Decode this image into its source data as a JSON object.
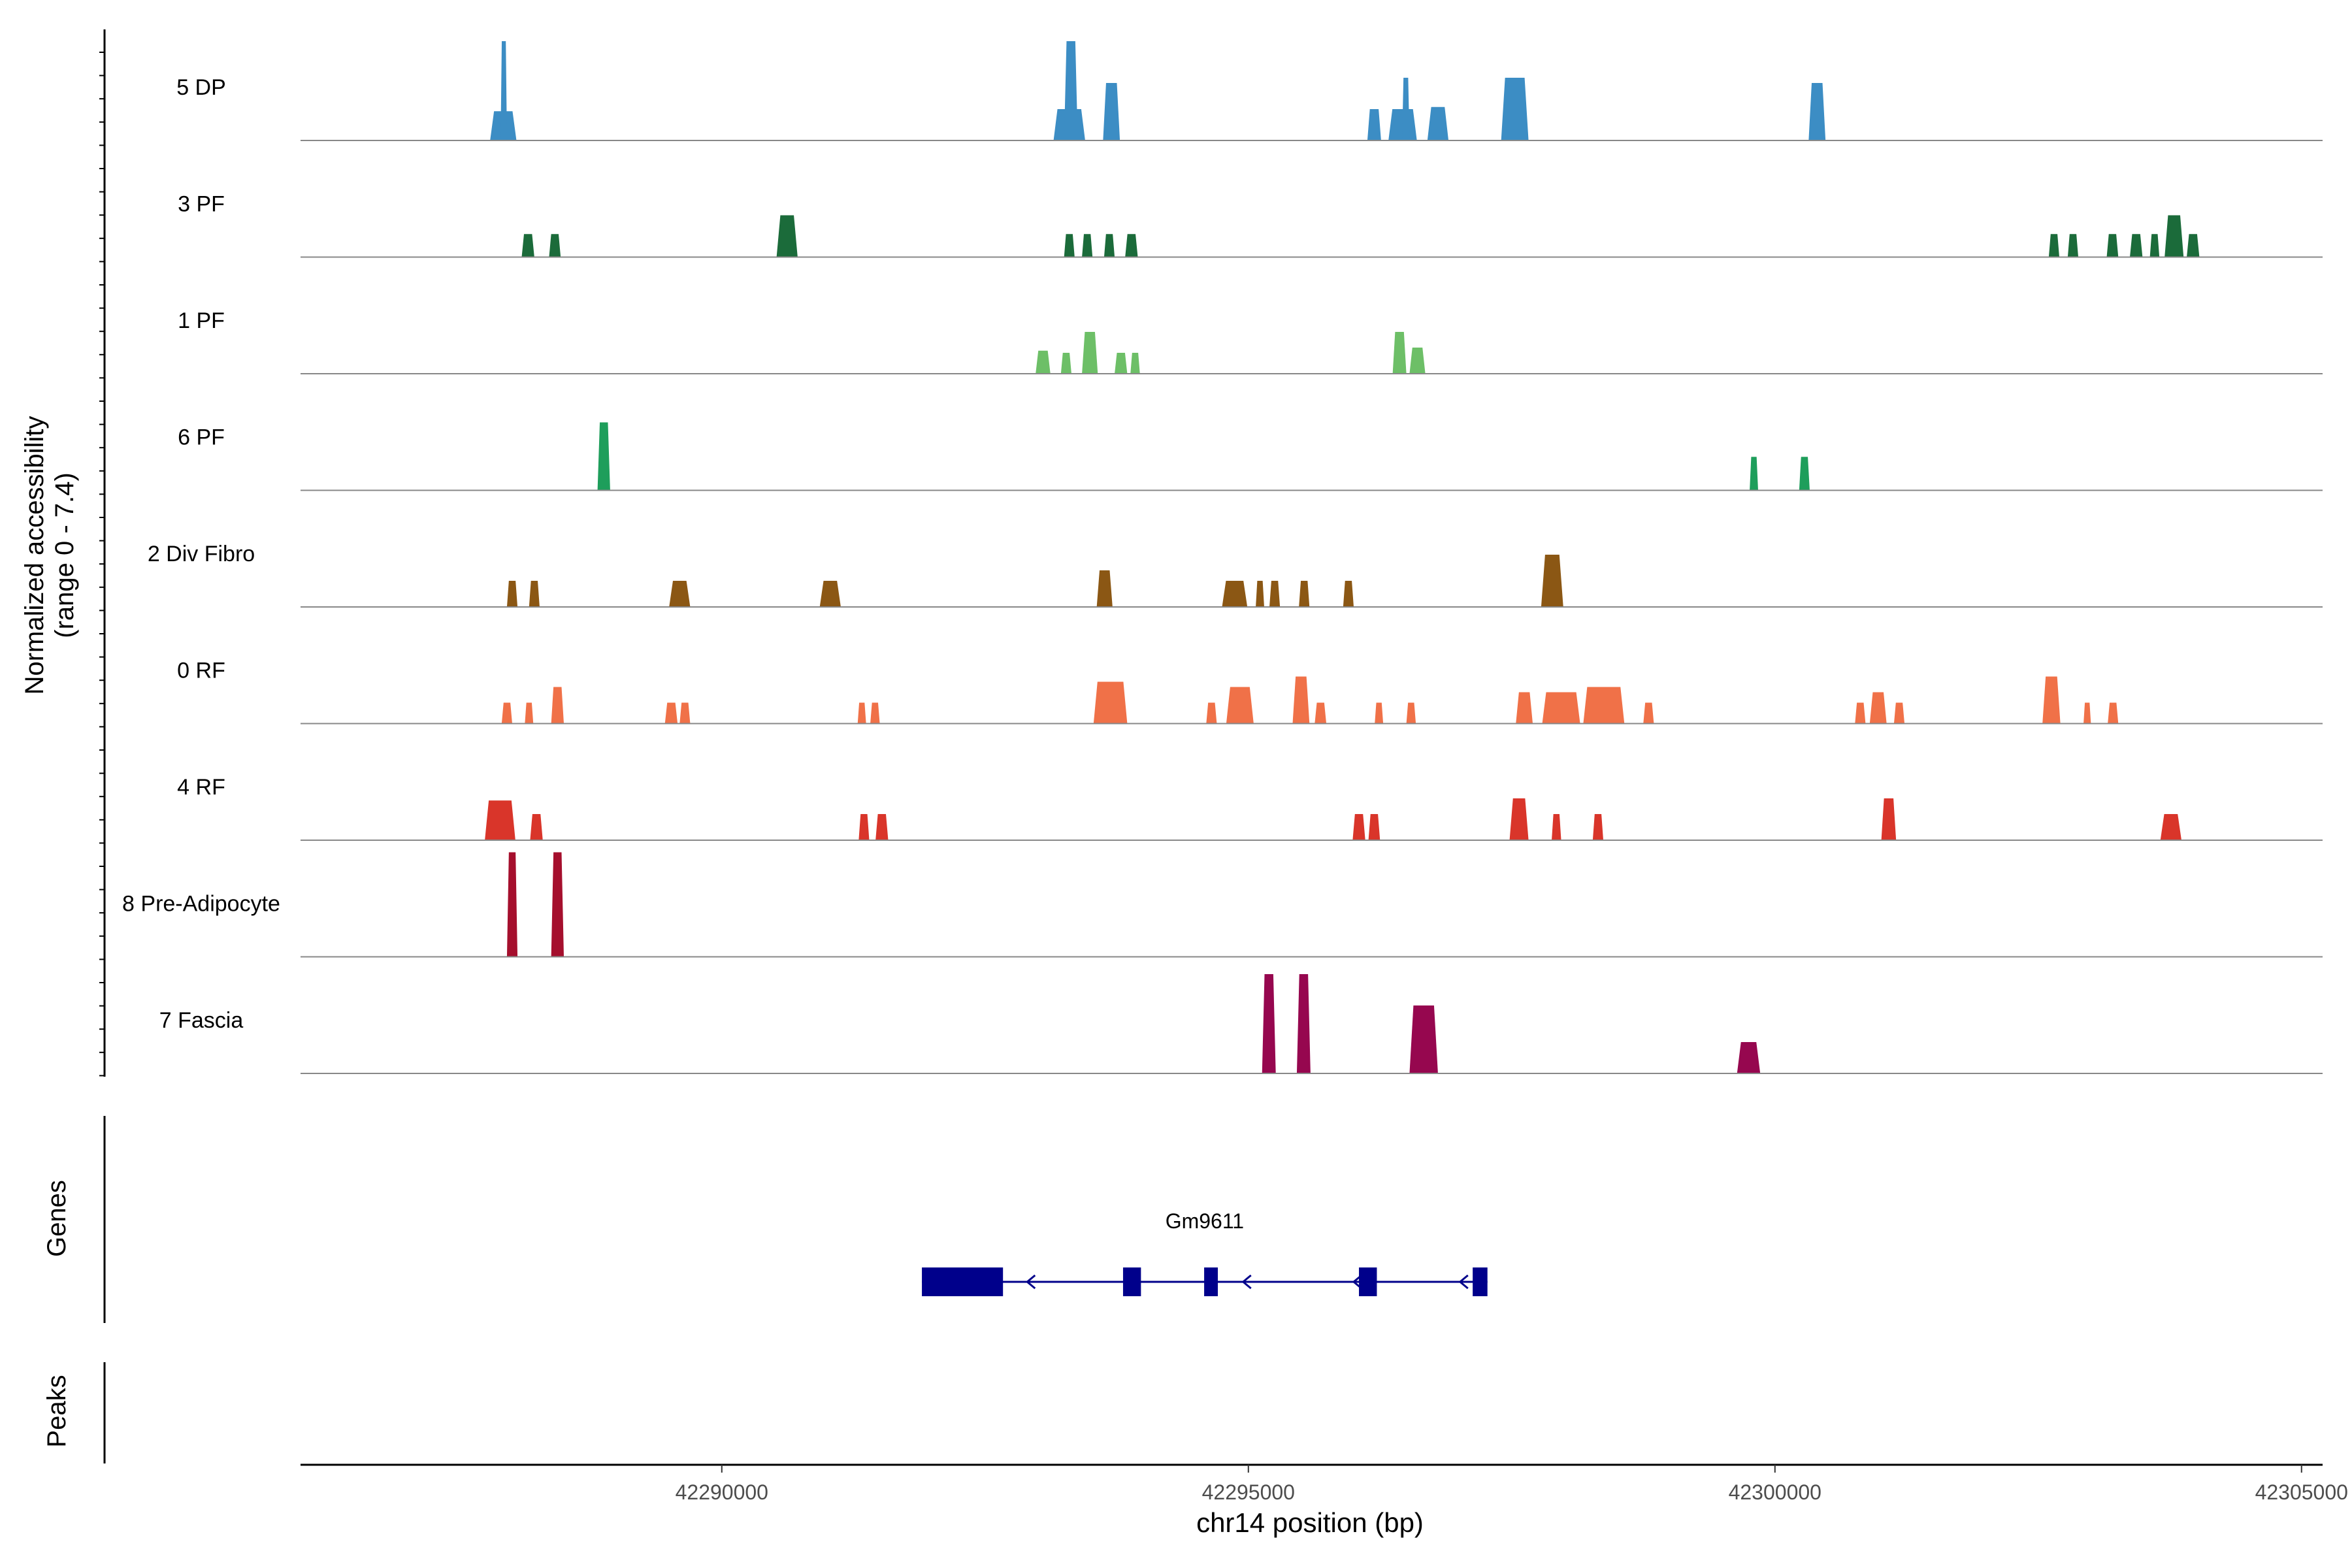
{
  "chart_data": {
    "type": "coverage-track",
    "y_axis_title_line1": "Normalized accessibility",
    "y_axis_title_line2": "(range 0 - 7.4)",
    "y_range": [
      0,
      7.4
    ],
    "x_axis_title": "chr14 position (bp)",
    "x_range": [
      42286000,
      42305200
    ],
    "x_ticks": [
      {
        "value": 42290000,
        "label": "42290000"
      },
      {
        "value": 42295000,
        "label": "42295000"
      },
      {
        "value": 42300000,
        "label": "42300000"
      },
      {
        "value": 42305000,
        "label": "42305000"
      }
    ],
    "tracks": [
      {
        "name": "5 DP",
        "color": "#3C8DC4",
        "peaks": [
          {
            "x": [
              42287800,
              42288050
            ],
            "h": 0.28
          },
          {
            "x": [
              42287900,
              42287960
            ],
            "h": 0.95
          },
          {
            "x": [
              42293150,
              42293450
            ],
            "h": 0.3
          },
          {
            "x": [
              42293250,
              42293380
            ],
            "h": 0.95
          },
          {
            "x": [
              42293620,
              42293780
            ],
            "h": 0.55
          },
          {
            "x": [
              42296130,
              42296260
            ],
            "h": 0.3
          },
          {
            "x": [
              42296330,
              42296600
            ],
            "h": 0.3
          },
          {
            "x": [
              42296460,
              42296530
            ],
            "h": 0.6
          },
          {
            "x": [
              42296700,
              42296900
            ],
            "h": 0.32
          },
          {
            "x": [
              42297400,
              42297660
            ],
            "h": 0.6
          },
          {
            "x": [
              42300320,
              42300480
            ],
            "h": 0.55
          }
        ]
      },
      {
        "name": "3 PF",
        "color": "#1B6B3A",
        "peaks": [
          {
            "x": [
              42288100,
              42288220
            ],
            "h": 0.22
          },
          {
            "x": [
              42288360,
              42288470
            ],
            "h": 0.22
          },
          {
            "x": [
              42290520,
              42290720
            ],
            "h": 0.4
          },
          {
            "x": [
              42293250,
              42293350
            ],
            "h": 0.22
          },
          {
            "x": [
              42293420,
              42293520
            ],
            "h": 0.22
          },
          {
            "x": [
              42293630,
              42293730
            ],
            "h": 0.22
          },
          {
            "x": [
              42293830,
              42293950
            ],
            "h": 0.22
          },
          {
            "x": [
              42302600,
              42302700
            ],
            "h": 0.22
          },
          {
            "x": [
              42302780,
              42302880
            ],
            "h": 0.22
          },
          {
            "x": [
              42303150,
              42303260
            ],
            "h": 0.22
          },
          {
            "x": [
              42303370,
              42303490
            ],
            "h": 0.22
          },
          {
            "x": [
              42303560,
              42303650
            ],
            "h": 0.22
          },
          {
            "x": [
              42303700,
              42303880
            ],
            "h": 0.4
          },
          {
            "x": [
              42303910,
              42304030
            ],
            "h": 0.22
          }
        ]
      },
      {
        "name": "1 PF",
        "color": "#6DBF67",
        "peaks": [
          {
            "x": [
              42292980,
              42293120
            ],
            "h": 0.22
          },
          {
            "x": [
              42293220,
              42293320
            ],
            "h": 0.2
          },
          {
            "x": [
              42293420,
              42293570
            ],
            "h": 0.4
          },
          {
            "x": [
              42293730,
              42293850
            ],
            "h": 0.2
          },
          {
            "x": [
              42293880,
              42293970
            ],
            "h": 0.2
          },
          {
            "x": [
              42296370,
              42296500
            ],
            "h": 0.4
          },
          {
            "x": [
              42296530,
              42296680
            ],
            "h": 0.25
          }
        ]
      },
      {
        "name": "6 PF",
        "color": "#1E9E5B",
        "peaks": [
          {
            "x": [
              42288820,
              42288940
            ],
            "h": 0.65
          },
          {
            "x": [
              42299760,
              42299840
            ],
            "h": 0.32
          },
          {
            "x": [
              42300230,
              42300330
            ],
            "h": 0.32
          }
        ]
      },
      {
        "name": "2 Div Fibro",
        "color": "#8B5714",
        "peaks": [
          {
            "x": [
              42287960,
              42288060
            ],
            "h": 0.25
          },
          {
            "x": [
              42288170,
              42288270
            ],
            "h": 0.25
          },
          {
            "x": [
              42289500,
              42289700
            ],
            "h": 0.25
          },
          {
            "x": [
              42290930,
              42291130
            ],
            "h": 0.25
          },
          {
            "x": [
              42293560,
              42293710
            ],
            "h": 0.35
          },
          {
            "x": [
              42294750,
              42294990
            ],
            "h": 0.25
          },
          {
            "x": [
              42295070,
              42295150
            ],
            "h": 0.25
          },
          {
            "x": [
              42295200,
              42295300
            ],
            "h": 0.25
          },
          {
            "x": [
              42295480,
              42295580
            ],
            "h": 0.25
          },
          {
            "x": [
              42295900,
              42296000
            ],
            "h": 0.25
          },
          {
            "x": [
              42297780,
              42297990
            ],
            "h": 0.5
          }
        ]
      },
      {
        "name": "0 RF",
        "color": "#F07148",
        "peaks": [
          {
            "x": [
              42287910,
              42288010
            ],
            "h": 0.2
          },
          {
            "x": [
              42288130,
              42288210
            ],
            "h": 0.2
          },
          {
            "x": [
              42288380,
              42288500
            ],
            "h": 0.35
          },
          {
            "x": [
              42289460,
              42289580
            ],
            "h": 0.2
          },
          {
            "x": [
              42289600,
              42289700
            ],
            "h": 0.2
          },
          {
            "x": [
              42291290,
              42291370
            ],
            "h": 0.2
          },
          {
            "x": [
              42291410,
              42291500
            ],
            "h": 0.2
          },
          {
            "x": [
              42293530,
              42293850
            ],
            "h": 0.4
          },
          {
            "x": [
              42294600,
              42294700
            ],
            "h": 0.2
          },
          {
            "x": [
              42294790,
              42295050
            ],
            "h": 0.35
          },
          {
            "x": [
              42295420,
              42295580
            ],
            "h": 0.45
          },
          {
            "x": [
              42295630,
              42295740
            ],
            "h": 0.2
          },
          {
            "x": [
              42296200,
              42296280
            ],
            "h": 0.2
          },
          {
            "x": [
              42296500,
              42296590
            ],
            "h": 0.2
          },
          {
            "x": [
              42297540,
              42297700
            ],
            "h": 0.3
          },
          {
            "x": [
              42297790,
              42298150
            ],
            "h": 0.3
          },
          {
            "x": [
              42298180,
              42298570
            ],
            "h": 0.35
          },
          {
            "x": [
              42298750,
              42298850
            ],
            "h": 0.2
          },
          {
            "x": [
              42300760,
              42300860
            ],
            "h": 0.2
          },
          {
            "x": [
              42300900,
              42301060
            ],
            "h": 0.3
          },
          {
            "x": [
              42301130,
              42301230
            ],
            "h": 0.2
          },
          {
            "x": [
              42302540,
              42302710
            ],
            "h": 0.45
          },
          {
            "x": [
              42302930,
              42303000
            ],
            "h": 0.2
          },
          {
            "x": [
              42303160,
              42303260
            ],
            "h": 0.2
          }
        ]
      },
      {
        "name": "4 RF",
        "color": "#D9352A",
        "peaks": [
          {
            "x": [
              42287750,
              42288040
            ],
            "h": 0.38
          },
          {
            "x": [
              42288180,
              42288300
            ],
            "h": 0.25
          },
          {
            "x": [
              42291300,
              42291400
            ],
            "h": 0.25
          },
          {
            "x": [
              42291460,
              42291580
            ],
            "h": 0.25
          },
          {
            "x": [
              42295990,
              42296110
            ],
            "h": 0.25
          },
          {
            "x": [
              42296140,
              42296250
            ],
            "h": 0.25
          },
          {
            "x": [
              42297480,
              42297660
            ],
            "h": 0.4
          },
          {
            "x": [
              42297880,
              42297970
            ],
            "h": 0.25
          },
          {
            "x": [
              42298270,
              42298370
            ],
            "h": 0.25
          },
          {
            "x": [
              42301010,
              42301150
            ],
            "h": 0.4
          },
          {
            "x": [
              42303660,
              42303860
            ],
            "h": 0.25
          }
        ]
      },
      {
        "name": "8 Pre-Adipocyte",
        "color": "#A50F2D",
        "peaks": [
          {
            "x": [
              42287960,
              42288060
            ],
            "h": 1.0
          },
          {
            "x": [
              42288380,
              42288500
            ],
            "h": 1.0
          }
        ]
      },
      {
        "name": "7 Fascia",
        "color": "#96074F",
        "peaks": [
          {
            "x": [
              42295130,
              42295260
            ],
            "h": 0.95
          },
          {
            "x": [
              42295460,
              42295590
            ],
            "h": 0.95
          },
          {
            "x": [
              42296530,
              42296800
            ],
            "h": 0.65
          },
          {
            "x": [
              42299640,
              42299860
            ],
            "h": 0.3
          }
        ]
      }
    ],
    "genes_label": "Genes",
    "peaks_label": "Peaks",
    "gene": {
      "name": "Gm9611",
      "color": "#00008B",
      "span": [
        42291900,
        42297270
      ],
      "strand": "-",
      "exons": [
        [
          42291900,
          42292670
        ],
        [
          42293810,
          42293980
        ],
        [
          42294580,
          42294710
        ],
        [
          42296050,
          42296220
        ],
        [
          42297130,
          42297270
        ]
      ],
      "arrows": [
        42292900,
        42294950,
        42296000,
        42297010
      ]
    }
  }
}
